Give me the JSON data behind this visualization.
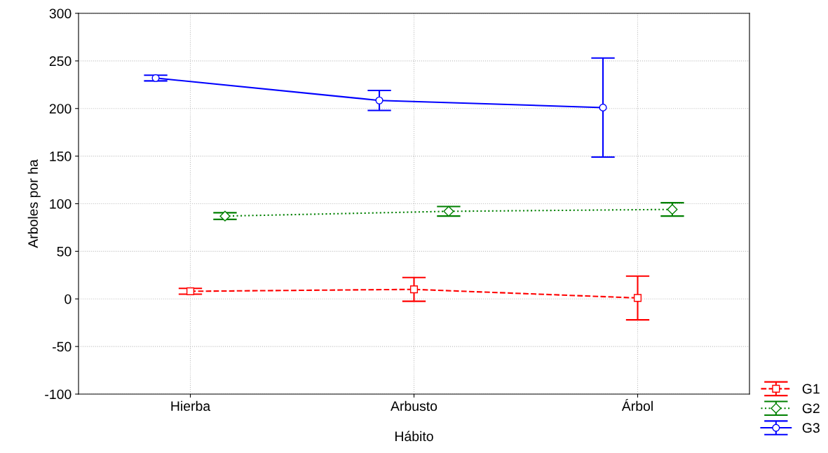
{
  "chart_data": {
    "type": "line",
    "xlabel": "Hábito",
    "ylabel": "Arboles por ha",
    "categories": [
      "Hierba",
      "Arbusto",
      "Árbol"
    ],
    "series": [
      {
        "name": "G1",
        "color": "#ff0000",
        "values": [
          8,
          10,
          1
        ],
        "errors": [
          3,
          12.5,
          23
        ],
        "marker": "square",
        "line_style": "dashed"
      },
      {
        "name": "G2",
        "color": "#008000",
        "values": [
          87,
          92,
          94
        ],
        "errors": [
          3.5,
          5,
          7
        ],
        "marker": "diamond",
        "line_style": "dotted"
      },
      {
        "name": "G3",
        "color": "#0000ff",
        "values": [
          232,
          208.5,
          201
        ],
        "errors": [
          3,
          10.5,
          52
        ],
        "marker": "circle",
        "line_style": "solid"
      }
    ],
    "ylim": [
      -100,
      300
    ],
    "yticks": [
      -100,
      -50,
      0,
      50,
      100,
      150,
      200,
      250,
      300
    ],
    "grid": true,
    "legend": "bottom right"
  }
}
